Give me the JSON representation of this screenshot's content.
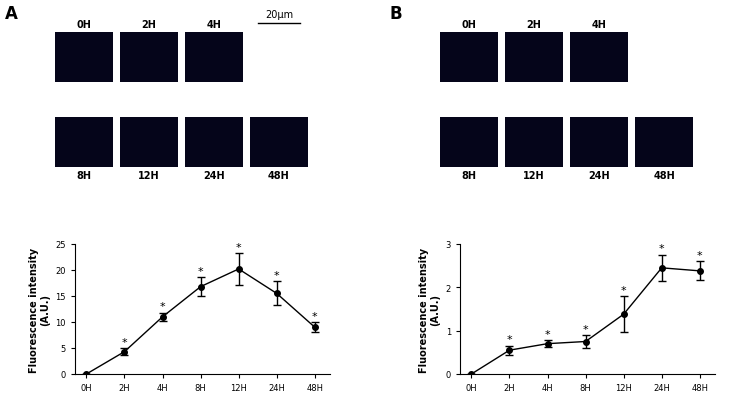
{
  "chart_data": [
    {
      "panel": "A",
      "type": "line",
      "categories": [
        "0H",
        "2H",
        "4H",
        "8H",
        "12H",
        "24H",
        "48H"
      ],
      "values": [
        0,
        4.3,
        11.0,
        16.8,
        20.2,
        15.5,
        9.0
      ],
      "errors": [
        0,
        0.7,
        0.8,
        1.8,
        3.0,
        2.3,
        1.0
      ],
      "annotations": [
        null,
        "*",
        "*",
        "*",
        "*",
        "*",
        "*"
      ],
      "ylabel": "Fluorescence intensity\n(A.U.)",
      "ylim": [
        0,
        25
      ],
      "yticks": [
        0,
        5,
        10,
        15,
        20,
        25
      ],
      "color": "#000000",
      "marker": "circle",
      "images": [
        "0H",
        "2H",
        "4H",
        "8H",
        "12H",
        "24H",
        "48H"
      ],
      "scale_bar": "20μm"
    },
    {
      "panel": "B",
      "type": "line",
      "categories": [
        "0H",
        "2H",
        "4H",
        "8H",
        "12H",
        "24H",
        "48H"
      ],
      "values": [
        0,
        0.55,
        0.7,
        0.75,
        1.38,
        2.45,
        2.38
      ],
      "errors": [
        0,
        0.1,
        0.08,
        0.15,
        0.42,
        0.3,
        0.22
      ],
      "annotations": [
        null,
        "*",
        "*",
        "*",
        "*",
        "*",
        "*"
      ],
      "ylabel": "Fluorescence intensity\n(A.U.)",
      "ylim": [
        0,
        3
      ],
      "yticks": [
        0,
        1,
        2,
        3
      ],
      "color": "#000000",
      "marker": "circle",
      "images": [
        "0H",
        "2H",
        "4H",
        "8H",
        "12H",
        "24H",
        "48H"
      ]
    }
  ]
}
